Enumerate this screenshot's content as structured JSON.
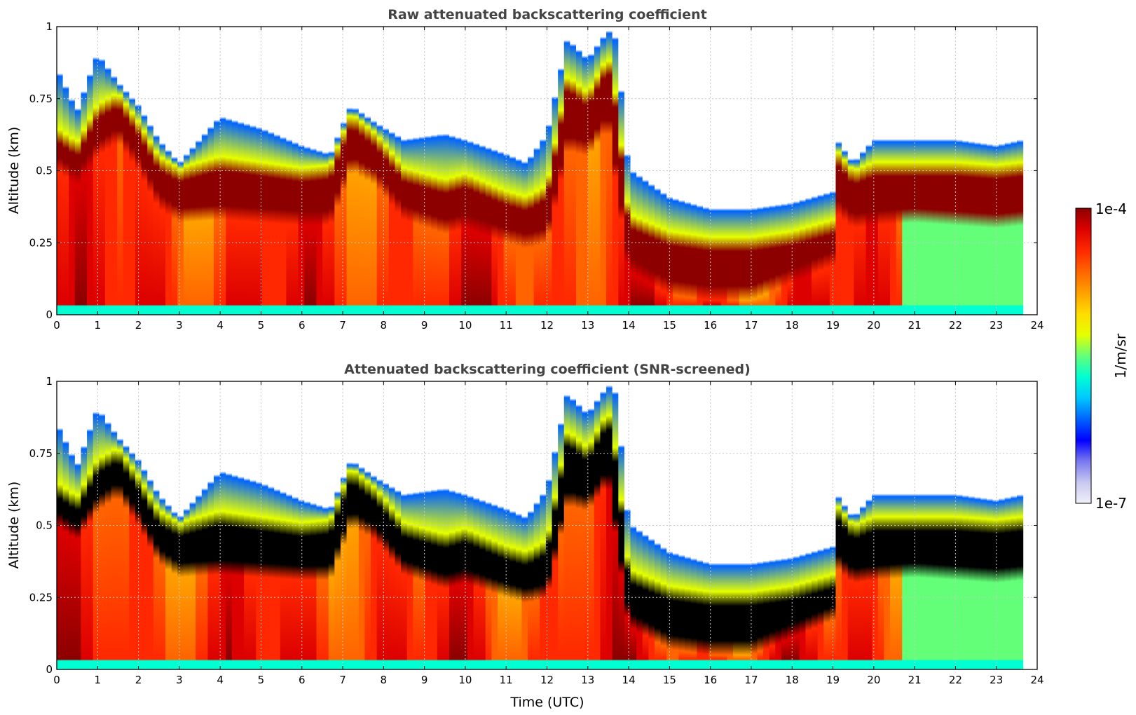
{
  "figure": {
    "colorbar": {
      "label": "1/m/sr",
      "min_label": "1e-7",
      "max_label": "1e-4",
      "min": 1e-07,
      "max": 0.0001,
      "scale": "log",
      "colormap": [
        "#f0f0fa",
        "#c8c8f0",
        "#7878f0",
        "#0000ff",
        "#0064ff",
        "#00c8ff",
        "#00ffd2",
        "#64ff78",
        "#e6ff00",
        "#ffdc00",
        "#ffa000",
        "#ff6400",
        "#ff2800",
        "#dc0000",
        "#8c0000"
      ]
    },
    "xlabel": "Time (UTC)"
  },
  "chart_data": [
    {
      "type": "heatmap",
      "title": "Raw attenuated backscattering coefficient",
      "xlabel": "",
      "ylabel": "Altitude (km)",
      "xlim": [
        0,
        24
      ],
      "ylim": [
        0,
        1
      ],
      "xticks": [
        "0",
        "1",
        "2",
        "3",
        "4",
        "5",
        "6",
        "7",
        "8",
        "9",
        "10",
        "11",
        "12",
        "13",
        "14",
        "15",
        "16",
        "17",
        "18",
        "19",
        "20",
        "21",
        "22",
        "23",
        "24"
      ],
      "yticks": [
        "0",
        "0.25",
        "0.5",
        "0.75",
        "1"
      ],
      "grid": true,
      "data_end_time": 23.65,
      "saturated_color": "#8c0000",
      "layer_top_km": {
        "time": [
          0,
          0.5,
          1,
          1.5,
          2,
          2.5,
          3,
          4,
          5,
          6,
          6.7,
          7.2,
          7.8,
          8.5,
          9.5,
          10,
          11,
          11.5,
          12,
          12.5,
          13,
          13.5,
          13.7,
          14,
          15,
          16,
          17,
          18,
          19,
          19.1,
          19.5,
          20,
          21,
          22,
          23,
          23.65
        ],
        "km": [
          0.85,
          0.7,
          0.9,
          0.8,
          0.72,
          0.6,
          0.52,
          0.68,
          0.64,
          0.58,
          0.55,
          0.72,
          0.66,
          0.6,
          0.62,
          0.6,
          0.55,
          0.52,
          0.62,
          0.95,
          0.88,
          0.98,
          0.95,
          0.5,
          0.4,
          0.36,
          0.36,
          0.38,
          0.42,
          0.6,
          0.52,
          0.6,
          0.6,
          0.6,
          0.58,
          0.6
        ]
      },
      "dense_layer_km": {
        "time": [
          0,
          0.5,
          1,
          1.5,
          2,
          2.5,
          3,
          4,
          5,
          6,
          6.7,
          7.2,
          7.8,
          8.5,
          9.5,
          10,
          11,
          11.5,
          12,
          12.5,
          13,
          13.5,
          13.7,
          14,
          15,
          16,
          17,
          18,
          19,
          19.1,
          19.5,
          20,
          21,
          22,
          23,
          23.65
        ],
        "bottom": [
          0.55,
          0.5,
          0.6,
          0.65,
          0.55,
          0.42,
          0.37,
          0.38,
          0.37,
          0.36,
          0.36,
          0.55,
          0.5,
          0.38,
          0.33,
          0.35,
          0.3,
          0.28,
          0.3,
          0.62,
          0.6,
          0.7,
          0.5,
          0.2,
          0.12,
          0.1,
          0.1,
          0.16,
          0.22,
          0.4,
          0.35,
          0.36,
          0.37,
          0.36,
          0.35,
          0.36
        ],
        "top": [
          0.6,
          0.55,
          0.68,
          0.72,
          0.62,
          0.5,
          0.46,
          0.5,
          0.48,
          0.46,
          0.47,
          0.65,
          0.58,
          0.46,
          0.42,
          0.44,
          0.38,
          0.36,
          0.4,
          0.78,
          0.72,
          0.85,
          0.7,
          0.3,
          0.24,
          0.22,
          0.22,
          0.24,
          0.28,
          0.52,
          0.45,
          0.48,
          0.48,
          0.48,
          0.47,
          0.48
        ]
      }
    },
    {
      "type": "heatmap",
      "title": "Attenuated backscattering coefficient (SNR-screened)",
      "xlabel": "Time (UTC)",
      "ylabel": "Altitude (km)",
      "xlim": [
        0,
        24
      ],
      "ylim": [
        0,
        1
      ],
      "xticks": [
        "0",
        "1",
        "2",
        "3",
        "4",
        "5",
        "6",
        "7",
        "8",
        "9",
        "10",
        "11",
        "12",
        "13",
        "14",
        "15",
        "16",
        "17",
        "18",
        "19",
        "20",
        "21",
        "22",
        "23",
        "24"
      ],
      "yticks": [
        "0",
        "0.25",
        "0.5",
        "0.75",
        "1"
      ],
      "grid": true,
      "data_end_time": 23.65,
      "saturated_color": "#000000",
      "layer_top_km": {
        "time": [
          0,
          0.5,
          1,
          1.5,
          2,
          2.5,
          3,
          4,
          5,
          6,
          6.7,
          7.2,
          7.8,
          8.5,
          9.5,
          10,
          11,
          11.5,
          12,
          12.5,
          13,
          13.5,
          13.7,
          14,
          15,
          16,
          17,
          18,
          19,
          19.1,
          19.5,
          20,
          21,
          22,
          23,
          23.65
        ],
        "km": [
          0.85,
          0.7,
          0.9,
          0.8,
          0.72,
          0.6,
          0.52,
          0.68,
          0.64,
          0.58,
          0.55,
          0.72,
          0.66,
          0.6,
          0.62,
          0.6,
          0.55,
          0.52,
          0.62,
          0.95,
          0.88,
          0.98,
          0.95,
          0.5,
          0.4,
          0.36,
          0.36,
          0.38,
          0.42,
          0.6,
          0.52,
          0.6,
          0.6,
          0.6,
          0.58,
          0.6
        ]
      },
      "dense_layer_km": {
        "time": [
          0,
          0.5,
          1,
          1.5,
          2,
          2.5,
          3,
          4,
          5,
          6,
          6.7,
          7.2,
          7.8,
          8.5,
          9.5,
          10,
          11,
          11.5,
          12,
          12.5,
          13,
          13.5,
          13.7,
          14,
          15,
          16,
          17,
          18,
          19,
          19.1,
          19.5,
          20,
          21,
          22,
          23,
          23.65
        ],
        "bottom": [
          0.55,
          0.5,
          0.6,
          0.65,
          0.55,
          0.42,
          0.37,
          0.38,
          0.37,
          0.36,
          0.36,
          0.55,
          0.5,
          0.38,
          0.33,
          0.35,
          0.3,
          0.28,
          0.3,
          0.62,
          0.6,
          0.7,
          0.5,
          0.2,
          0.12,
          0.1,
          0.1,
          0.16,
          0.22,
          0.4,
          0.35,
          0.36,
          0.37,
          0.36,
          0.35,
          0.36
        ],
        "top": [
          0.6,
          0.55,
          0.68,
          0.72,
          0.62,
          0.5,
          0.46,
          0.5,
          0.48,
          0.46,
          0.47,
          0.65,
          0.58,
          0.46,
          0.42,
          0.44,
          0.38,
          0.36,
          0.4,
          0.78,
          0.72,
          0.85,
          0.7,
          0.3,
          0.24,
          0.22,
          0.22,
          0.24,
          0.28,
          0.52,
          0.45,
          0.48,
          0.48,
          0.48,
          0.47,
          0.48
        ]
      }
    }
  ]
}
